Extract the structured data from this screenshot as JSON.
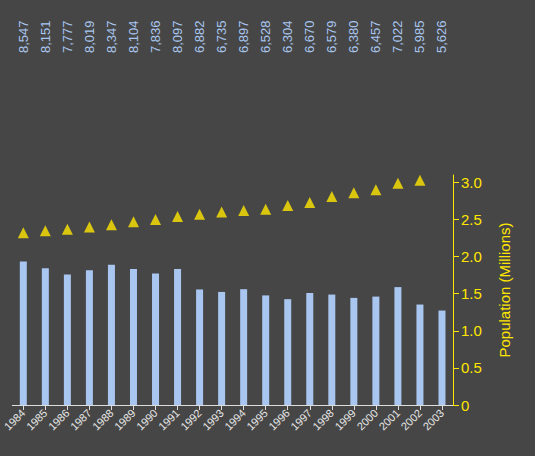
{
  "chart_data": {
    "type": "bar",
    "categories": [
      "1984",
      "1985",
      "1986",
      "1987",
      "1988",
      "1989",
      "1990",
      "1991",
      "1992",
      "1993",
      "1994",
      "1995",
      "1996",
      "1997",
      "1998",
      "1999",
      "2000",
      "2001",
      "2002",
      "2003"
    ],
    "series": [
      {
        "type": "bar",
        "axis": "y2",
        "color": "#a9c6f0",
        "values": [
          8547,
          8151,
          7777,
          8019,
          8347,
          8104,
          7836,
          8097,
          6882,
          6735,
          6897,
          6528,
          6304,
          6670,
          6579,
          6380,
          6457,
          7022,
          5985,
          5626
        ],
        "value_labels": [
          "8,547",
          "8,151",
          "7,777",
          "8,019",
          "8,347",
          "8,104",
          "7,836",
          "8,097",
          "6,882",
          "6,735",
          "6,897",
          "6,528",
          "6,304",
          "6,670",
          "6,579",
          "6,380",
          "6,457",
          "7,022",
          "5,985",
          "5,626"
        ]
      },
      {
        "type": "scatter",
        "marker": "triangle",
        "color": "#ffe600",
        "values": [
          2.32,
          2.35,
          2.37,
          2.4,
          2.43,
          2.47,
          2.5,
          2.54,
          2.57,
          2.6,
          2.62,
          2.64,
          2.69,
          2.73,
          2.81,
          2.86,
          2.9,
          2.99,
          3.03,
          null
        ]
      }
    ],
    "y_label": "Population (Millions)",
    "ylim": [
      0,
      3.1
    ],
    "yticks": [
      0,
      {
        "value": 0.5,
        "label": "0.5"
      },
      {
        "value": 1,
        "label": "1.0"
      },
      1.5,
      {
        "value": 2,
        "label": "2.0"
      },
      2.5,
      {
        "value": 3,
        "label": "3.0"
      }
    ],
    "y2lim": [
      0,
      13700
    ],
    "y2ticks": [],
    "data_labels": true,
    "grid": false
  }
}
